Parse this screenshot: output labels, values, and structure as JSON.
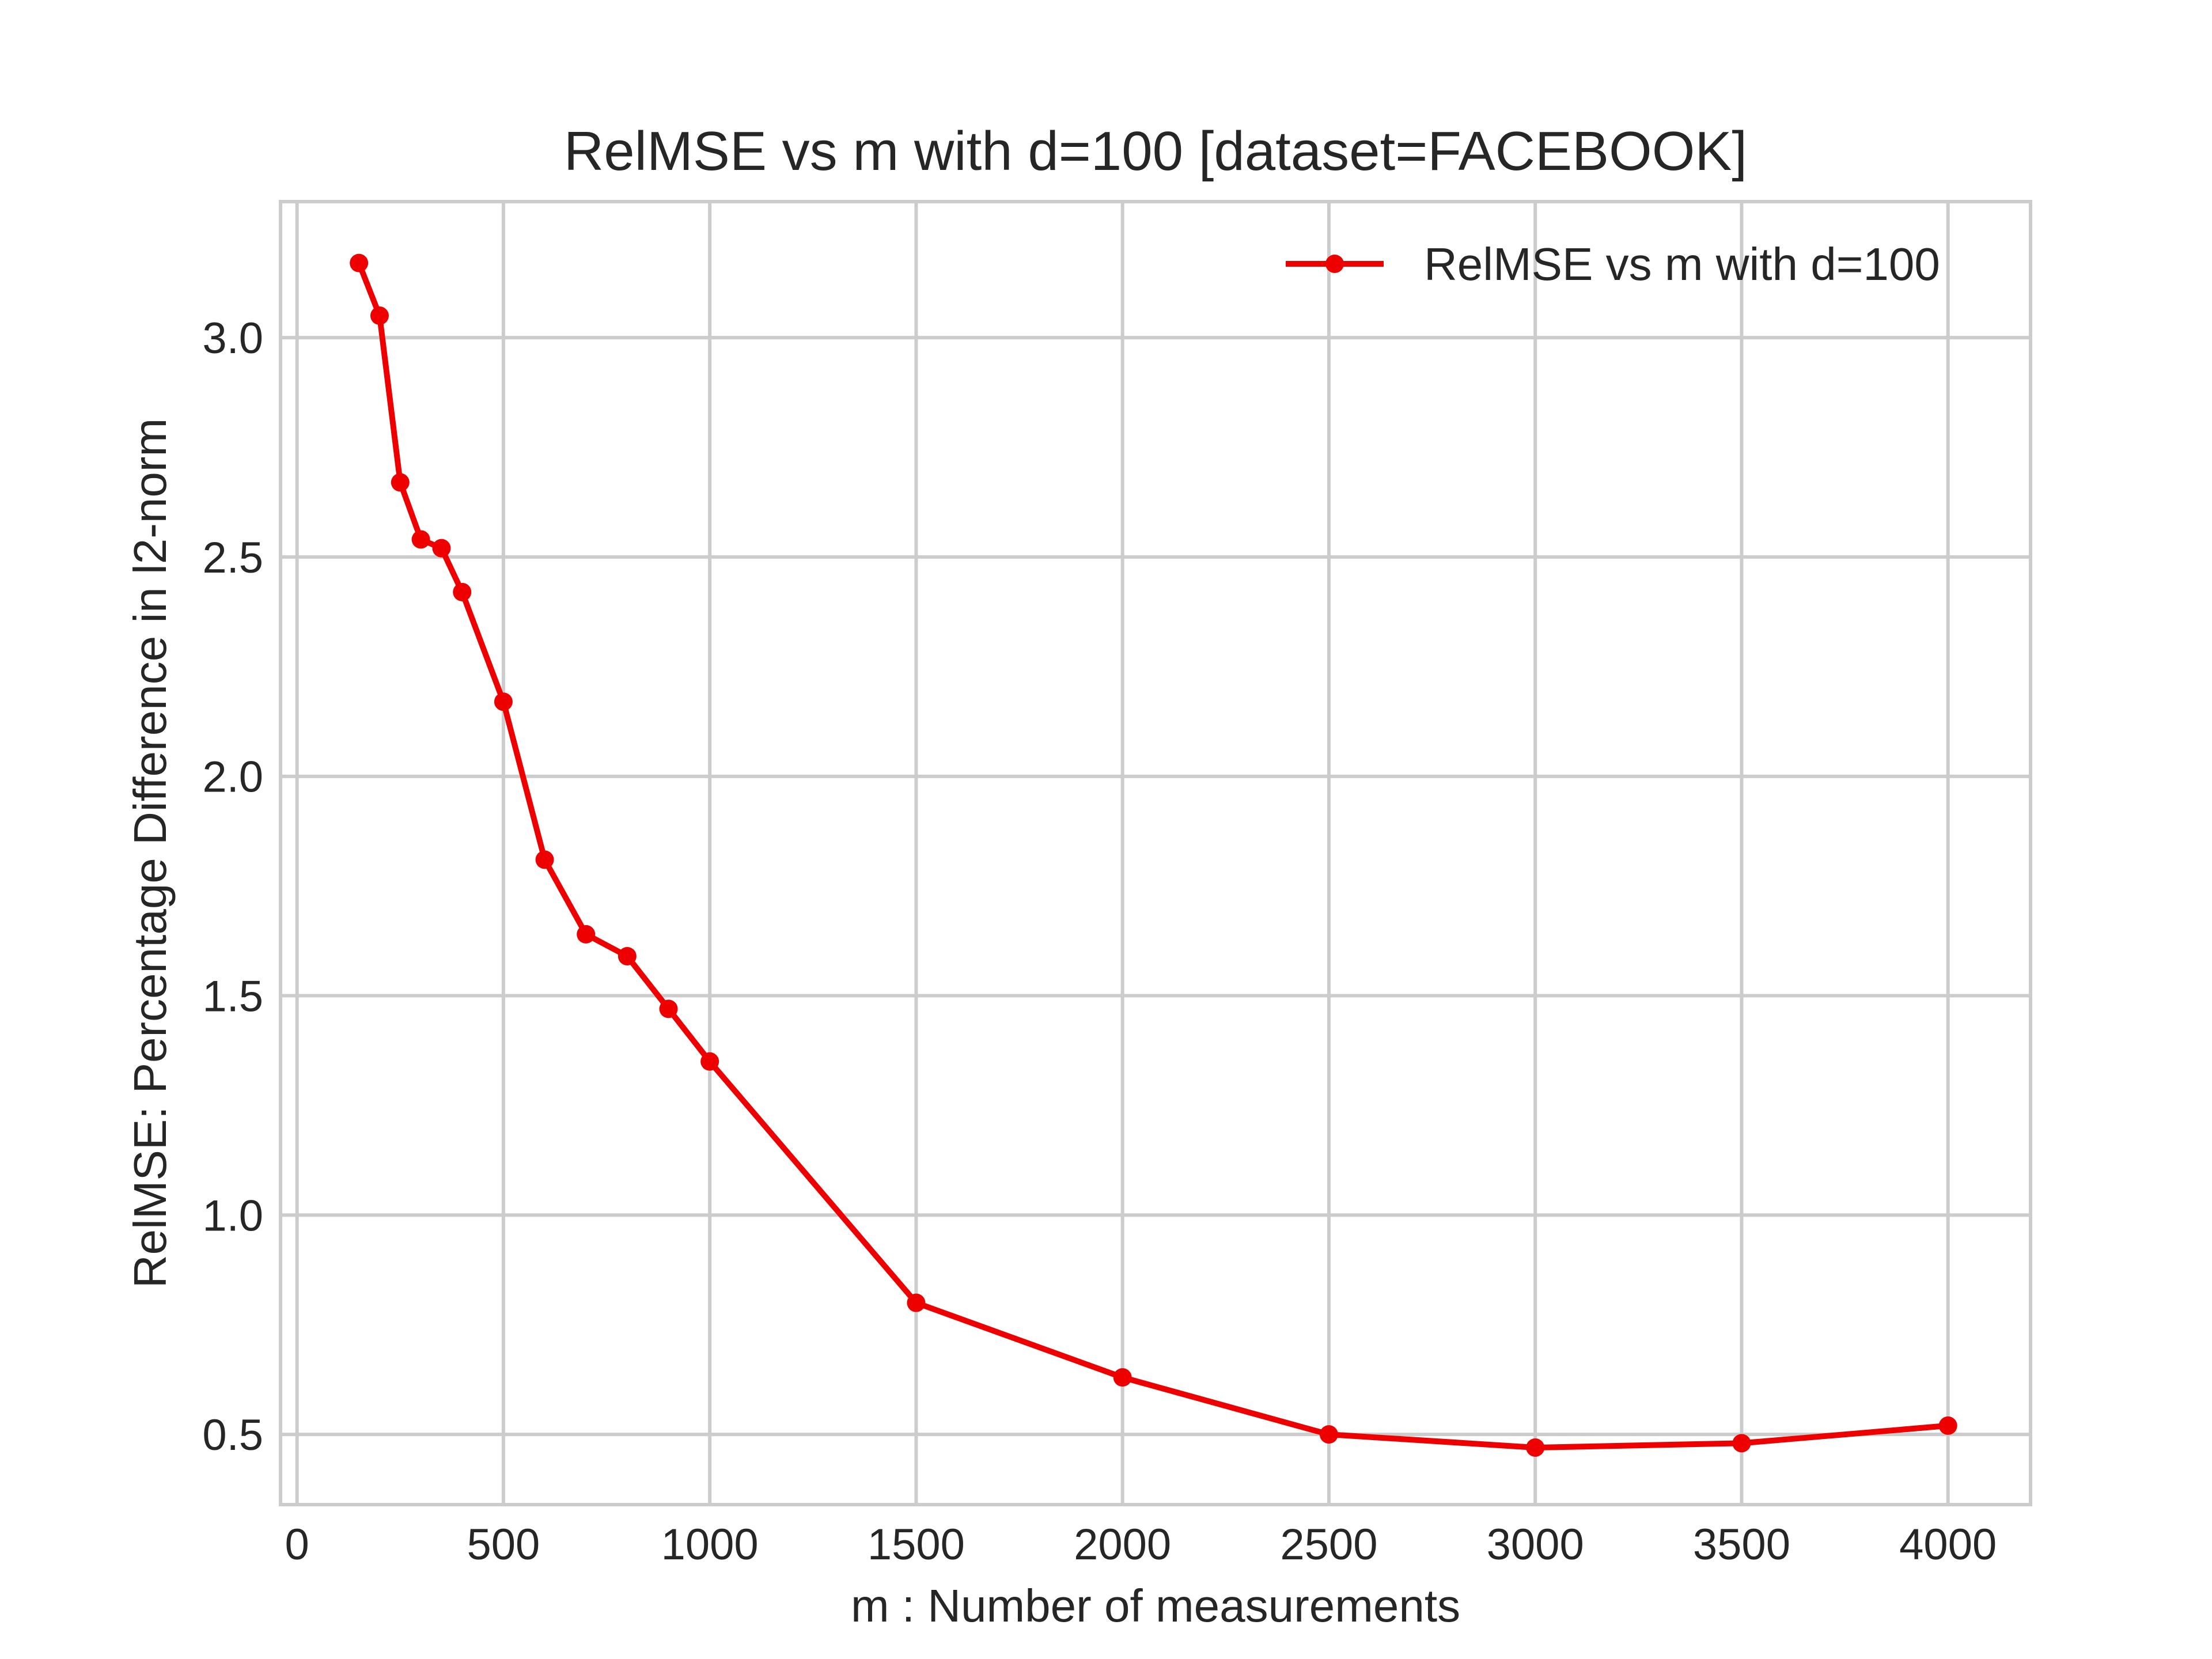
{
  "chart_data": {
    "type": "line",
    "title": "RelMSE vs m with d=100 [dataset=FACEBOOK]",
    "xlabel": "m : Number of measurements",
    "ylabel": "RelMSE: Percentage Difference in l2-norm",
    "xlim": [
      -40,
      4200
    ],
    "ylim": [
      0.34,
      3.31
    ],
    "xticks": [
      0,
      500,
      1000,
      1500,
      2000,
      2500,
      3000,
      3500,
      4000
    ],
    "xtick_labels": [
      "0",
      "500",
      "1000",
      "1500",
      "2000",
      "2500",
      "3000",
      "3500",
      "4000"
    ],
    "yticks": [
      0.5,
      1.0,
      1.5,
      2.0,
      2.5,
      3.0
    ],
    "ytick_labels": [
      "0.5",
      "1.0",
      "1.5",
      "2.0",
      "2.5",
      "3.0"
    ],
    "grid": true,
    "legend_position": "top-right",
    "series": [
      {
        "name": "RelMSE vs m with d=100",
        "color": "#ee0000",
        "marker": "circle",
        "x": [
          150,
          200,
          250,
          300,
          350,
          400,
          500,
          600,
          700,
          800,
          900,
          1000,
          1500,
          2000,
          2500,
          3000,
          3500,
          4000
        ],
        "y": [
          3.17,
          3.05,
          2.67,
          2.54,
          2.52,
          2.42,
          2.17,
          1.81,
          1.64,
          1.59,
          1.47,
          1.35,
          0.8,
          0.63,
          0.5,
          0.47,
          0.48,
          0.52
        ]
      }
    ]
  }
}
